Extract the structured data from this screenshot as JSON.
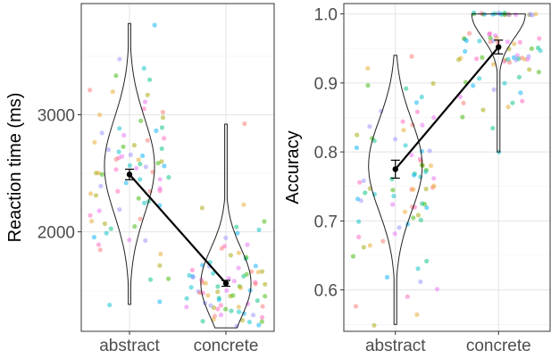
{
  "chart_data": [
    {
      "type": "violin",
      "ylabel": "Reaction time (ms)",
      "xlabel": "",
      "categories": [
        "abstract",
        "concrete"
      ],
      "ylim": [
        1150,
        3950
      ],
      "yticks": [
        2000,
        3000
      ],
      "grid": true,
      "series": [
        {
          "category": "abstract",
          "mean": 2490,
          "error_low": 2445,
          "error_high": 2535,
          "violin_min": 1380,
          "violin_max": 3780,
          "violin_peak": 2560,
          "points": [
            3220,
            3190,
            3170,
            3340,
            3300,
            3400,
            3760,
            3480,
            3100,
            3050,
            3030,
            3000,
            2980,
            2950,
            2900,
            2880,
            2860,
            2840,
            2820,
            2800,
            2790,
            2760,
            2740,
            2720,
            2700,
            2680,
            2660,
            2650,
            2640,
            2630,
            2620,
            2610,
            2600,
            2590,
            2580,
            2570,
            2560,
            2550,
            2540,
            2530,
            2520,
            2510,
            2500,
            2480,
            2460,
            2440,
            2420,
            2400,
            2380,
            2360,
            2340,
            2320,
            2300,
            2280,
            2260,
            2240,
            2220,
            2200,
            2180,
            2150,
            2120,
            2100,
            2080,
            2050,
            2020,
            1990,
            1960,
            1930,
            1920,
            1900,
            1850,
            1800,
            1720,
            1610,
            1590,
            1380,
            1400,
            2700,
            2450,
            2350
          ]
        },
        {
          "category": "concrete",
          "mean": 1560,
          "error_low": 1535,
          "error_high": 1585,
          "violin_min": 1180,
          "violin_max": 2920,
          "violin_peak": 1560,
          "points": [
            2920,
            2230,
            2200,
            2100,
            2050,
            2010,
            1980,
            1950,
            1900,
            1870,
            1850,
            1820,
            1800,
            1780,
            1760,
            1740,
            1720,
            1700,
            1690,
            1680,
            1670,
            1660,
            1650,
            1640,
            1630,
            1620,
            1610,
            1600,
            1590,
            1580,
            1570,
            1560,
            1550,
            1540,
            1530,
            1520,
            1510,
            1500,
            1490,
            1480,
            1470,
            1460,
            1450,
            1440,
            1430,
            1420,
            1410,
            1400,
            1390,
            1380,
            1370,
            1360,
            1350,
            1340,
            1330,
            1320,
            1310,
            1300,
            1290,
            1280,
            1270,
            1260,
            1250,
            1240,
            1230,
            1220,
            1210,
            1200,
            1600,
            1570,
            1550,
            1520,
            1480,
            1450,
            1420,
            1650,
            1700,
            1380,
            1350,
            1330
          ]
        }
      ]
    },
    {
      "type": "violin",
      "ylabel": "Accuracy",
      "xlabel": "",
      "categories": [
        "abstract",
        "concrete"
      ],
      "ylim": [
        0.54,
        1.015
      ],
      "yticks": [
        0.6,
        0.7,
        0.8,
        0.9,
        1.0
      ],
      "grid": true,
      "series": [
        {
          "category": "abstract",
          "mean": 0.775,
          "error_low": 0.762,
          "error_high": 0.788,
          "violin_min": 0.55,
          "violin_max": 0.94,
          "violin_peak": 0.78,
          "points": [
            0.94,
            0.92,
            0.9,
            0.895,
            0.89,
            0.88,
            0.87,
            0.86,
            0.85,
            0.845,
            0.84,
            0.83,
            0.825,
            0.82,
            0.815,
            0.81,
            0.8,
            0.8,
            0.795,
            0.79,
            0.785,
            0.78,
            0.78,
            0.775,
            0.77,
            0.77,
            0.765,
            0.76,
            0.76,
            0.755,
            0.75,
            0.75,
            0.745,
            0.745,
            0.74,
            0.735,
            0.73,
            0.73,
            0.725,
            0.72,
            0.72,
            0.715,
            0.71,
            0.705,
            0.7,
            0.7,
            0.695,
            0.69,
            0.68,
            0.675,
            0.67,
            0.665,
            0.66,
            0.65,
            0.64,
            0.63,
            0.62,
            0.61,
            0.6,
            0.59,
            0.575,
            0.565,
            0.55,
            0.78,
            0.76,
            0.74,
            0.72,
            0.82,
            0.84,
            0.86,
            0.745,
            0.745,
            0.745,
            0.725,
            0.725,
            0.765,
            0.805,
            0.835
          ]
        },
        {
          "category": "concrete",
          "mean": 0.952,
          "error_low": 0.942,
          "error_high": 0.962,
          "violin_min": 0.8,
          "violin_max": 1.0,
          "violin_peak": 1.0,
          "points": [
            1.0,
            1.0,
            1.0,
            1.0,
            1.0,
            1.0,
            1.0,
            1.0,
            1.0,
            1.0,
            1.0,
            1.0,
            1.0,
            1.0,
            1.0,
            1.0,
            1.0,
            1.0,
            0.97,
            0.97,
            0.97,
            0.965,
            0.965,
            0.965,
            0.965,
            0.96,
            0.96,
            0.96,
            0.96,
            0.96,
            0.96,
            0.955,
            0.95,
            0.95,
            0.95,
            0.945,
            0.945,
            0.94,
            0.94,
            0.935,
            0.935,
            0.935,
            0.935,
            0.935,
            0.935,
            0.935,
            0.935,
            0.935,
            0.935,
            0.93,
            0.93,
            0.925,
            0.92,
            0.915,
            0.91,
            0.9,
            0.895,
            0.89,
            0.88,
            0.875,
            0.87,
            0.865,
            0.86,
            0.85,
            0.835,
            0.8,
            1.0,
            1.0,
            0.97,
            0.965,
            0.96,
            0.935,
            0.935,
            0.9,
            0.87,
            0.905,
            0.885,
            1.0
          ]
        }
      ]
    }
  ]
}
